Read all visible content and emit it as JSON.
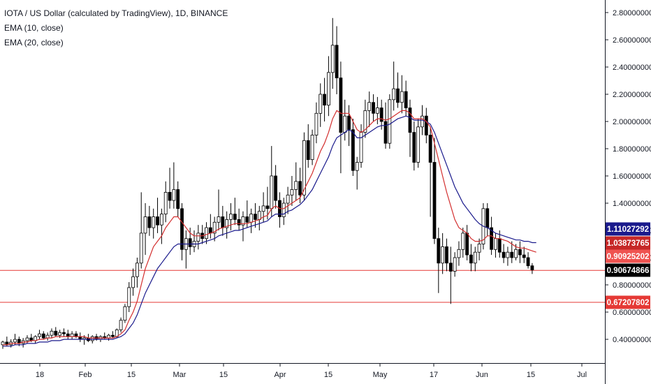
{
  "legend": {
    "title": "IOTA / US Dollar (calculated by TradingView), 1D, BINANCE",
    "ema10": "EMA (10, close)",
    "ema20": "EMA (20, close)"
  },
  "chart_data": {
    "type": "candlestick",
    "title": "IOTA / US Dollar (calculated by TradingView), 1D, BINANCE",
    "x_tick_labels": [
      "18",
      "Feb",
      "15",
      "Mar",
      "15",
      "Apr",
      "15",
      "May",
      "17",
      "Jun",
      "15",
      "Jul"
    ],
    "y_tick_labels": [
      "0.40000000",
      "0.60000000",
      "0.80000000",
      "1.00000000",
      "1.20000000",
      "1.40000000",
      "1.60000000",
      "1.80000000",
      "2.00000000",
      "2.20000000",
      "2.40000000",
      "2.60000000",
      "2.80000000"
    ],
    "ylim": [
      0.27,
      2.84
    ],
    "grid": false,
    "colors": {
      "up": "#ffffff",
      "down": "#000000",
      "wick": "#000000",
      "ema10": "#d32f2f",
      "ema20": "#1a1a8c",
      "hline": "#e53935"
    },
    "price_labels": [
      {
        "value": "1.11027292",
        "color": "#1a1a8c"
      },
      {
        "value": "1.03873765",
        "color": "#c62828"
      },
      {
        "value": "0.90925202",
        "color": "#ef5350"
      },
      {
        "value": "0.90674866",
        "color": "#000000"
      },
      {
        "value": "0.67207802",
        "color": "#e53935"
      }
    ],
    "horizontal_lines": [
      0.9067,
      0.672
    ],
    "candles": [
      [
        0.36,
        0.39,
        0.33,
        0.38
      ],
      [
        0.38,
        0.42,
        0.35,
        0.36
      ],
      [
        0.36,
        0.4,
        0.34,
        0.38
      ],
      [
        0.38,
        0.44,
        0.36,
        0.4
      ],
      [
        0.4,
        0.42,
        0.35,
        0.37
      ],
      [
        0.37,
        0.41,
        0.34,
        0.39
      ],
      [
        0.39,
        0.43,
        0.37,
        0.41
      ],
      [
        0.41,
        0.44,
        0.38,
        0.39
      ],
      [
        0.39,
        0.43,
        0.37,
        0.42
      ],
      [
        0.42,
        0.47,
        0.4,
        0.44
      ],
      [
        0.44,
        0.46,
        0.4,
        0.41
      ],
      [
        0.41,
        0.45,
        0.39,
        0.43
      ],
      [
        0.43,
        0.48,
        0.41,
        0.46
      ],
      [
        0.46,
        0.49,
        0.42,
        0.43
      ],
      [
        0.43,
        0.47,
        0.41,
        0.45
      ],
      [
        0.45,
        0.48,
        0.42,
        0.44
      ],
      [
        0.44,
        0.47,
        0.4,
        0.42
      ],
      [
        0.42,
        0.46,
        0.4,
        0.44
      ],
      [
        0.44,
        0.46,
        0.41,
        0.42
      ],
      [
        0.42,
        0.45,
        0.38,
        0.4
      ],
      [
        0.4,
        0.43,
        0.36,
        0.41
      ],
      [
        0.41,
        0.44,
        0.38,
        0.39
      ],
      [
        0.39,
        0.43,
        0.37,
        0.42
      ],
      [
        0.42,
        0.44,
        0.39,
        0.4
      ],
      [
        0.4,
        0.43,
        0.38,
        0.42
      ],
      [
        0.42,
        0.45,
        0.4,
        0.41
      ],
      [
        0.41,
        0.44,
        0.39,
        0.43
      ],
      [
        0.43,
        0.46,
        0.41,
        0.42
      ],
      [
        0.42,
        0.48,
        0.41,
        0.47
      ],
      [
        0.47,
        0.56,
        0.45,
        0.54
      ],
      [
        0.54,
        0.66,
        0.52,
        0.64
      ],
      [
        0.64,
        0.82,
        0.6,
        0.78
      ],
      [
        0.78,
        0.92,
        0.72,
        0.86
      ],
      [
        0.86,
        1.0,
        0.78,
        0.96
      ],
      [
        0.96,
        1.48,
        0.92,
        1.18
      ],
      [
        1.18,
        1.4,
        1.02,
        1.3
      ],
      [
        1.3,
        1.38,
        1.16,
        1.22
      ],
      [
        1.22,
        1.36,
        1.14,
        1.3
      ],
      [
        1.3,
        1.44,
        1.18,
        1.24
      ],
      [
        1.24,
        1.36,
        1.1,
        1.32
      ],
      [
        1.32,
        1.56,
        1.26,
        1.48
      ],
      [
        1.48,
        1.66,
        1.36,
        1.42
      ],
      [
        1.42,
        1.7,
        1.36,
        1.5
      ],
      [
        1.5,
        1.56,
        1.3,
        1.36
      ],
      [
        1.36,
        1.4,
        0.98,
        1.06
      ],
      [
        1.06,
        1.2,
        0.92,
        1.14
      ],
      [
        1.14,
        1.22,
        1.02,
        1.08
      ],
      [
        1.08,
        1.2,
        1.04,
        1.12
      ],
      [
        1.12,
        1.24,
        1.06,
        1.18
      ],
      [
        1.18,
        1.24,
        1.1,
        1.14
      ],
      [
        1.14,
        1.26,
        1.1,
        1.22
      ],
      [
        1.22,
        1.32,
        1.14,
        1.18
      ],
      [
        1.18,
        1.3,
        1.12,
        1.26
      ],
      [
        1.26,
        1.5,
        1.2,
        1.3
      ],
      [
        1.3,
        1.38,
        1.16,
        1.22
      ],
      [
        1.22,
        1.34,
        1.14,
        1.28
      ],
      [
        1.28,
        1.4,
        1.2,
        1.32
      ],
      [
        1.32,
        1.44,
        1.24,
        1.28
      ],
      [
        1.28,
        1.36,
        1.2,
        1.24
      ],
      [
        1.24,
        1.34,
        1.12,
        1.3
      ],
      [
        1.3,
        1.42,
        1.22,
        1.26
      ],
      [
        1.26,
        1.36,
        1.18,
        1.32
      ],
      [
        1.32,
        1.4,
        1.22,
        1.28
      ],
      [
        1.28,
        1.38,
        1.2,
        1.34
      ],
      [
        1.34,
        1.48,
        1.26,
        1.38
      ],
      [
        1.38,
        1.52,
        1.28,
        1.36
      ],
      [
        1.36,
        1.82,
        1.3,
        1.6
      ],
      [
        1.6,
        1.68,
        1.36,
        1.42
      ],
      [
        1.42,
        1.48,
        1.22,
        1.3
      ],
      [
        1.3,
        1.44,
        1.24,
        1.4
      ],
      [
        1.4,
        1.52,
        1.32,
        1.46
      ],
      [
        1.46,
        1.6,
        1.38,
        1.5
      ],
      [
        1.5,
        1.7,
        1.42,
        1.56
      ],
      [
        1.56,
        1.66,
        1.4,
        1.46
      ],
      [
        1.46,
        1.92,
        1.42,
        1.86
      ],
      [
        1.86,
        1.98,
        1.66,
        1.72
      ],
      [
        1.72,
        1.94,
        1.68,
        1.9
      ],
      [
        1.9,
        2.14,
        1.84,
        2.06
      ],
      [
        2.06,
        2.28,
        1.96,
        2.2
      ],
      [
        2.2,
        2.32,
        2.0,
        2.12
      ],
      [
        2.12,
        2.48,
        2.04,
        2.36
      ],
      [
        2.36,
        2.76,
        2.24,
        2.56
      ],
      [
        2.56,
        2.7,
        2.2,
        2.32
      ],
      [
        2.32,
        2.44,
        1.62,
        1.92
      ],
      [
        1.92,
        2.16,
        1.86,
        2.04
      ],
      [
        2.04,
        2.12,
        1.82,
        1.94
      ],
      [
        1.94,
        2.02,
        1.6,
        1.64
      ],
      [
        1.64,
        1.74,
        1.5,
        1.7
      ],
      [
        1.7,
        1.98,
        1.66,
        1.92
      ],
      [
        1.92,
        2.16,
        1.88,
        2.08
      ],
      [
        2.08,
        2.22,
        1.96,
        2.14
      ],
      [
        2.14,
        2.2,
        2.0,
        2.06
      ],
      [
        2.06,
        2.18,
        1.98,
        2.1
      ],
      [
        2.1,
        2.16,
        1.94,
        2.0
      ],
      [
        2.0,
        2.14,
        1.8,
        1.84
      ],
      [
        1.84,
        2.2,
        1.8,
        2.16
      ],
      [
        2.16,
        2.44,
        2.08,
        2.24
      ],
      [
        2.24,
        2.36,
        2.1,
        2.14
      ],
      [
        2.14,
        2.34,
        2.06,
        2.22
      ],
      [
        2.22,
        2.3,
        2.04,
        2.1
      ],
      [
        2.1,
        2.16,
        1.74,
        1.92
      ],
      [
        1.92,
        2.0,
        1.64,
        1.7
      ],
      [
        1.7,
        2.02,
        1.66,
        1.96
      ],
      [
        1.96,
        2.12,
        1.9,
        2.04
      ],
      [
        2.04,
        2.1,
        1.84,
        1.9
      ],
      [
        1.9,
        1.96,
        1.3,
        1.7
      ],
      [
        1.7,
        1.88,
        1.1,
        1.14
      ],
      [
        1.14,
        1.22,
        0.74,
        0.96
      ],
      [
        0.96,
        1.18,
        0.88,
        1.08
      ],
      [
        1.08,
        1.14,
        0.9,
        0.96
      ],
      [
        0.96,
        1.08,
        0.66,
        0.9
      ],
      [
        0.9,
        1.04,
        0.86,
        1.0
      ],
      [
        1.0,
        1.12,
        0.94,
        1.06
      ],
      [
        1.06,
        1.22,
        1.0,
        1.18
      ],
      [
        1.18,
        1.24,
        0.98,
        1.02
      ],
      [
        1.02,
        1.1,
        0.9,
        0.96
      ],
      [
        0.96,
        1.08,
        0.9,
        1.04
      ],
      [
        1.04,
        1.14,
        0.98,
        1.1
      ],
      [
        1.1,
        1.4,
        1.06,
        1.36
      ],
      [
        1.36,
        1.4,
        1.16,
        1.22
      ],
      [
        1.22,
        1.3,
        1.02,
        1.06
      ],
      [
        1.06,
        1.18,
        1.0,
        1.14
      ],
      [
        1.14,
        1.2,
        1.0,
        1.04
      ],
      [
        1.04,
        1.1,
        0.96,
        1.0
      ],
      [
        1.0,
        1.08,
        0.94,
        1.04
      ],
      [
        1.04,
        1.12,
        0.96,
        1.0
      ],
      [
        1.0,
        1.1,
        0.98,
        1.06
      ],
      [
        1.06,
        1.12,
        0.96,
        1.02
      ],
      [
        1.02,
        1.08,
        0.96,
        1.0
      ],
      [
        1.0,
        1.04,
        0.92,
        0.94
      ],
      [
        0.94,
        0.96,
        0.88,
        0.91
      ]
    ],
    "ema10": [
      0.36,
      0.36,
      0.37,
      0.37,
      0.37,
      0.38,
      0.38,
      0.39,
      0.39,
      0.4,
      0.4,
      0.41,
      0.41,
      0.42,
      0.42,
      0.42,
      0.42,
      0.42,
      0.42,
      0.42,
      0.42,
      0.41,
      0.41,
      0.41,
      0.41,
      0.41,
      0.41,
      0.41,
      0.42,
      0.44,
      0.47,
      0.54,
      0.6,
      0.68,
      0.8,
      0.92,
      1.0,
      1.08,
      1.12,
      1.16,
      1.22,
      1.26,
      1.3,
      1.3,
      1.26,
      1.22,
      1.18,
      1.16,
      1.16,
      1.16,
      1.17,
      1.18,
      1.19,
      1.21,
      1.22,
      1.23,
      1.24,
      1.25,
      1.25,
      1.25,
      1.25,
      1.26,
      1.27,
      1.28,
      1.3,
      1.31,
      1.36,
      1.38,
      1.36,
      1.36,
      1.38,
      1.4,
      1.42,
      1.44,
      1.5,
      1.56,
      1.62,
      1.7,
      1.78,
      1.84,
      1.92,
      2.02,
      2.08,
      2.06,
      2.06,
      2.06,
      2.0,
      1.94,
      1.92,
      1.94,
      1.97,
      2.0,
      2.02,
      2.02,
      2.01,
      2.02,
      2.04,
      2.06,
      2.08,
      2.08,
      2.06,
      2.02,
      2.02,
      2.02,
      2.0,
      1.96,
      1.84,
      1.72,
      1.6,
      1.48,
      1.38,
      1.28,
      1.22,
      1.2,
      1.18,
      1.14,
      1.12,
      1.12,
      1.13,
      1.16,
      1.16,
      1.14,
      1.14,
      1.13,
      1.12,
      1.1,
      1.08,
      1.07,
      1.07,
      1.06,
      1.05,
      1.04
    ],
    "ema20": [
      0.35,
      0.35,
      0.35,
      0.36,
      0.36,
      0.36,
      0.37,
      0.37,
      0.37,
      0.38,
      0.38,
      0.38,
      0.39,
      0.39,
      0.39,
      0.4,
      0.4,
      0.4,
      0.4,
      0.4,
      0.4,
      0.4,
      0.4,
      0.4,
      0.4,
      0.4,
      0.4,
      0.4,
      0.41,
      0.42,
      0.44,
      0.48,
      0.52,
      0.58,
      0.66,
      0.74,
      0.8,
      0.86,
      0.92,
      0.96,
      1.0,
      1.04,
      1.08,
      1.1,
      1.1,
      1.1,
      1.1,
      1.1,
      1.1,
      1.11,
      1.12,
      1.13,
      1.14,
      1.16,
      1.17,
      1.18,
      1.19,
      1.2,
      1.2,
      1.21,
      1.22,
      1.23,
      1.24,
      1.25,
      1.26,
      1.27,
      1.3,
      1.32,
      1.32,
      1.32,
      1.34,
      1.35,
      1.37,
      1.39,
      1.42,
      1.46,
      1.5,
      1.56,
      1.62,
      1.68,
      1.74,
      1.82,
      1.88,
      1.9,
      1.92,
      1.94,
      1.92,
      1.88,
      1.88,
      1.9,
      1.92,
      1.94,
      1.96,
      1.97,
      1.97,
      1.98,
      2.0,
      2.02,
      2.03,
      2.04,
      2.03,
      2.01,
      2.01,
      2.01,
      2.0,
      1.98,
      1.92,
      1.84,
      1.76,
      1.68,
      1.6,
      1.52,
      1.46,
      1.4,
      1.36,
      1.32,
      1.28,
      1.25,
      1.23,
      1.22,
      1.2,
      1.18,
      1.17,
      1.16,
      1.15,
      1.14,
      1.13,
      1.13,
      1.12,
      1.12,
      1.11,
      1.11
    ]
  }
}
